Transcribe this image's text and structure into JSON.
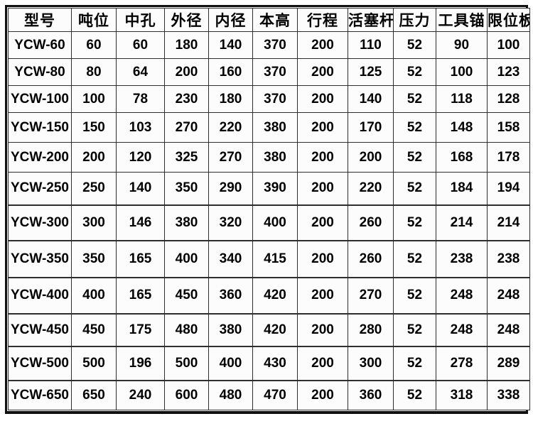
{
  "table": {
    "headers": [
      "型号",
      "吨位",
      "中孔",
      "外径",
      "内径",
      "本高",
      "行程",
      "活塞杆",
      "压力",
      "工具锚",
      "限位板"
    ],
    "rows": [
      [
        "YCW-60",
        "60",
        "60",
        "180",
        "140",
        "370",
        "200",
        "110",
        "52",
        "90",
        "100"
      ],
      [
        "YCW-80",
        "80",
        "64",
        "200",
        "160",
        "370",
        "200",
        "125",
        "52",
        "100",
        "123"
      ],
      [
        "YCW-100",
        "100",
        "78",
        "230",
        "180",
        "370",
        "200",
        "140",
        "52",
        "118",
        "128"
      ],
      [
        "YCW-150",
        "150",
        "103",
        "270",
        "220",
        "380",
        "200",
        "170",
        "52",
        "148",
        "158"
      ],
      [
        "YCW-200",
        "200",
        "120",
        "325",
        "270",
        "380",
        "200",
        "200",
        "52",
        "168",
        "178"
      ],
      [
        "YCW-250",
        "250",
        "140",
        "350",
        "290",
        "390",
        "200",
        "220",
        "52",
        "184",
        "194"
      ],
      [
        "YCW-300",
        "300",
        "146",
        "380",
        "320",
        "400",
        "200",
        "260",
        "52",
        "214",
        "214"
      ],
      [
        "YCW-350",
        "350",
        "165",
        "400",
        "340",
        "415",
        "200",
        "260",
        "52",
        "238",
        "238"
      ],
      [
        "YCW-400",
        "400",
        "165",
        "450",
        "360",
        "420",
        "200",
        "270",
        "52",
        "248",
        "248"
      ],
      [
        "YCW-450",
        "450",
        "175",
        "480",
        "380",
        "420",
        "200",
        "280",
        "52",
        "248",
        "248"
      ],
      [
        "YCW-500",
        "500",
        "196",
        "500",
        "400",
        "430",
        "200",
        "300",
        "52",
        "278",
        "289"
      ],
      [
        "YCW-650",
        "650",
        "240",
        "600",
        "480",
        "470",
        "200",
        "360",
        "52",
        "318",
        "338"
      ]
    ]
  },
  "colors": {
    "outer_border": "#101010",
    "grid_line": "#2e2e2e",
    "cell_background": "#fcfcfc",
    "text": "#000000"
  }
}
